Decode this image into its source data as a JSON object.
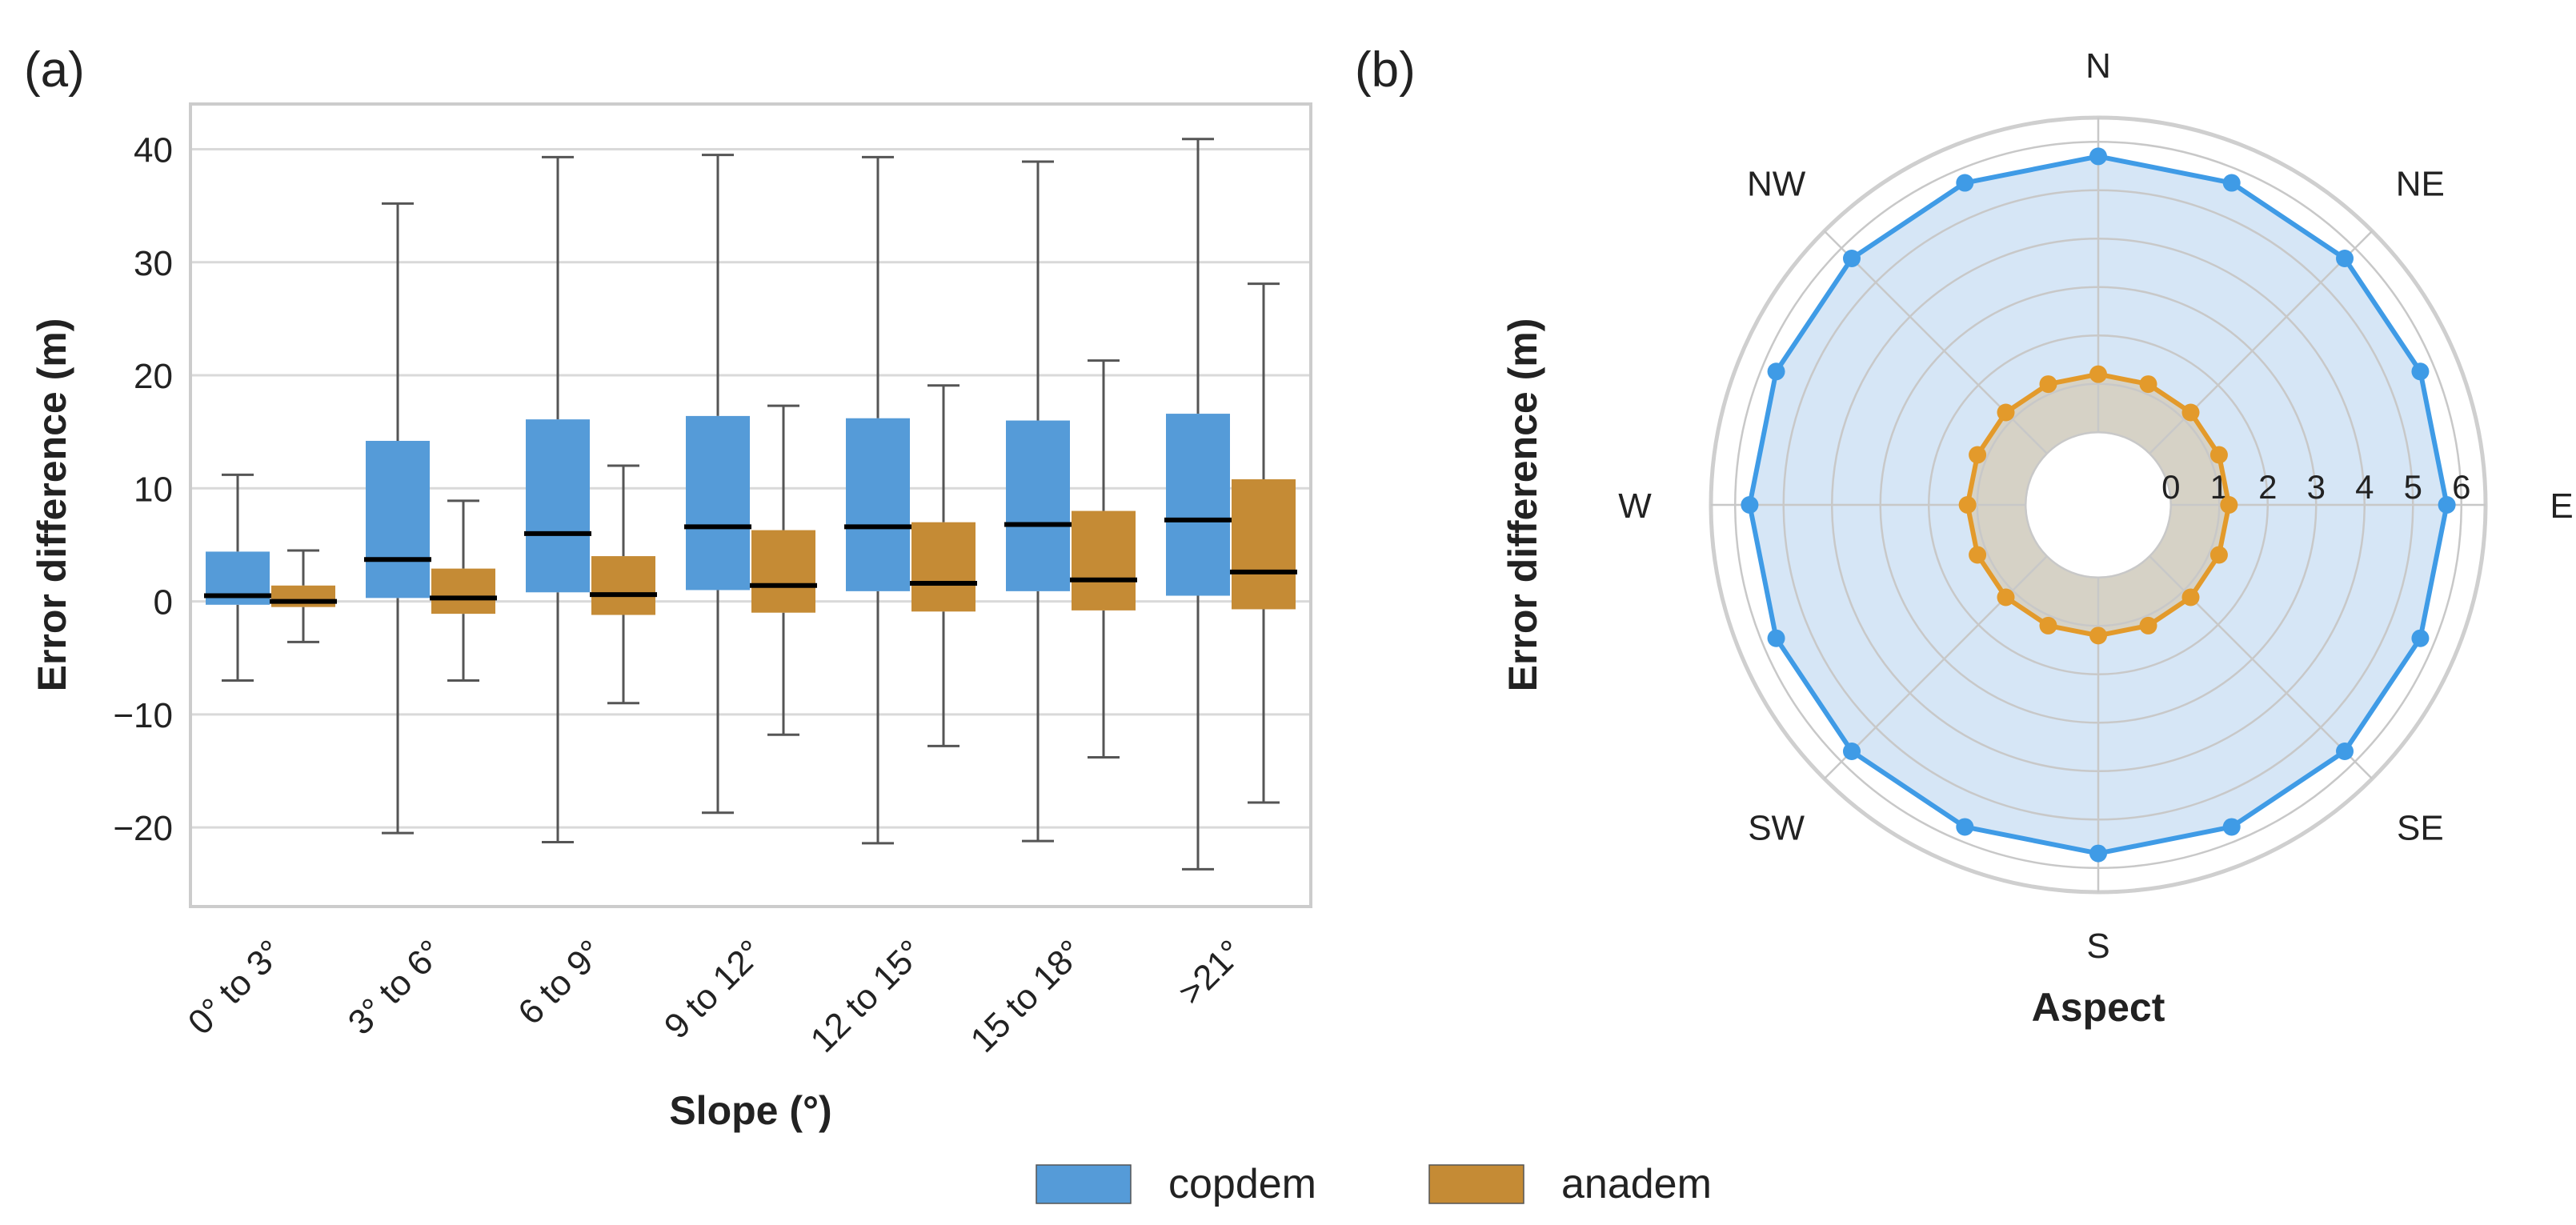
{
  "colors": {
    "copdem": "#559bd8",
    "anadem": "#c58b35",
    "copdem_line": "#3f9be6",
    "anadem_line": "#e39a2b",
    "copdem_fill": "#d6e6f6",
    "anadem_fill": "#d6d2c6",
    "grid": "#d9d9d9",
    "axis_frame": "#cccccc",
    "text": "#222222",
    "whisker": "#555555",
    "median": "#000000"
  },
  "legend": {
    "items": [
      {
        "label": "copdem",
        "color": "#559bd8"
      },
      {
        "label": "anadem",
        "color": "#c58b35"
      }
    ]
  },
  "panels": {
    "a_label": "(a)",
    "b_label": "(b)"
  },
  "chart_data": [
    {
      "type": "boxplot",
      "panel_label": "(a)",
      "title": "",
      "xlabel": "Slope (°)",
      "ylabel": "Error difference (m)",
      "ylim": [
        -27,
        44
      ],
      "yticks": [
        -20,
        -10,
        0,
        10,
        20,
        30,
        40
      ],
      "ytick_labels": [
        "−20",
        "−10",
        "0",
        "10",
        "20",
        "30",
        "40"
      ],
      "grid": true,
      "categories": [
        "0° to 3°",
        "3° to 6°",
        "6 to 9°",
        "9 to 12°",
        "12 to 15°",
        "15 to 18°",
        ">21°"
      ],
      "series": [
        {
          "name": "copdem",
          "boxes": [
            {
              "whislo": -7.0,
              "q1": -0.3,
              "med": 0.5,
              "q3": 4.4,
              "whishi": 11.2
            },
            {
              "whislo": -20.5,
              "q1": 0.3,
              "med": 3.7,
              "q3": 14.2,
              "whishi": 35.2
            },
            {
              "whislo": -21.3,
              "q1": 0.8,
              "med": 6.0,
              "q3": 16.1,
              "whishi": 39.3
            },
            {
              "whislo": -18.7,
              "q1": 1.0,
              "med": 6.6,
              "q3": 16.4,
              "whishi": 39.5
            },
            {
              "whislo": -21.4,
              "q1": 0.9,
              "med": 6.6,
              "q3": 16.2,
              "whishi": 39.3
            },
            {
              "whislo": -21.2,
              "q1": 0.9,
              "med": 6.8,
              "q3": 16.0,
              "whishi": 38.9
            },
            {
              "whislo": -23.7,
              "q1": 0.5,
              "med": 7.2,
              "q3": 16.6,
              "whishi": 40.9
            }
          ]
        },
        {
          "name": "anadem",
          "boxes": [
            {
              "whislo": -3.6,
              "q1": -0.5,
              "med": 0.0,
              "q3": 1.4,
              "whishi": 4.5
            },
            {
              "whislo": -7.0,
              "q1": -1.1,
              "med": 0.3,
              "q3": 2.9,
              "whishi": 8.9
            },
            {
              "whislo": -9.0,
              "q1": -1.2,
              "med": 0.6,
              "q3": 4.0,
              "whishi": 12.0
            },
            {
              "whislo": -11.8,
              "q1": -1.0,
              "med": 1.4,
              "q3": 6.3,
              "whishi": 17.3
            },
            {
              "whislo": -12.8,
              "q1": -0.9,
              "med": 1.6,
              "q3": 7.0,
              "whishi": 19.1
            },
            {
              "whislo": -13.8,
              "q1": -0.8,
              "med": 1.9,
              "q3": 8.0,
              "whishi": 21.3
            },
            {
              "whislo": -17.8,
              "q1": -0.7,
              "med": 2.6,
              "q3": 10.8,
              "whishi": 28.1
            }
          ]
        }
      ]
    },
    {
      "type": "radar",
      "panel_label": "(b)",
      "title": "",
      "xlabel": "Aspect",
      "ylabel": "Error difference (m)",
      "rlim": [
        -1.5,
        6.5
      ],
      "rticks": [
        0,
        1,
        2,
        3,
        4,
        5,
        6
      ],
      "rtick_labels": [
        "0",
        "1",
        "2",
        "3",
        "4",
        "5",
        "6"
      ],
      "direction_labels": [
        "N",
        "NE",
        "E",
        "SE",
        "S",
        "SW",
        "W",
        "NW"
      ],
      "angles_deg": [
        0,
        22.5,
        45,
        67.5,
        90,
        112.5,
        135,
        157.5,
        180,
        202.5,
        225,
        247.5,
        270,
        292.5,
        315,
        337.5
      ],
      "series": [
        {
          "name": "copdem",
          "values": [
            5.7,
            5.7,
            5.7,
            5.7,
            5.7,
            5.7,
            5.7,
            5.7,
            5.7,
            5.7,
            5.7,
            5.7,
            5.7,
            5.7,
            5.7,
            5.7
          ]
        },
        {
          "name": "anadem",
          "values": [
            1.2,
            1.2,
            1.2,
            1.2,
            1.2,
            1.2,
            1.2,
            1.2,
            1.2,
            1.2,
            1.2,
            1.2,
            1.2,
            1.2,
            1.2,
            1.2
          ]
        }
      ]
    }
  ]
}
